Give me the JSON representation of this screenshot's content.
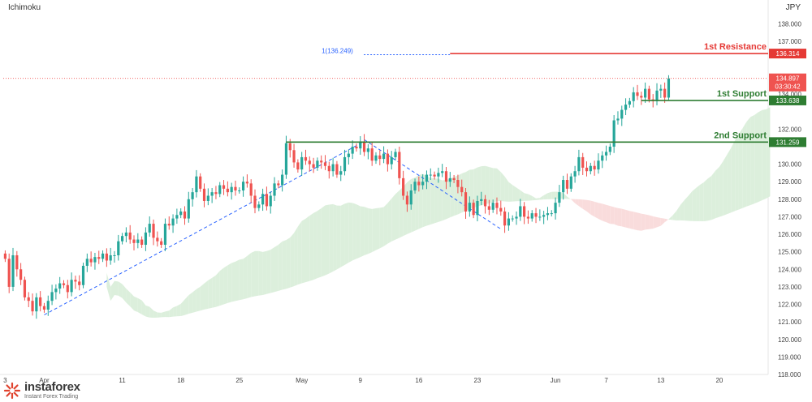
{
  "indicator": "Ichimoku",
  "currency": "JPY",
  "logo": {
    "name": "instaforex",
    "tagline": "Instant Forex Trading"
  },
  "colors": {
    "up": "#26a69a",
    "down": "#ef5350",
    "resistance": "#e53935",
    "support": "#2e7d32",
    "cloud_bull": "#dcefdc",
    "cloud_bear": "#f9dcdc",
    "trendline": "#2962ff",
    "price_tag": "#ef5350",
    "grid": "#ffffff"
  },
  "chart_data": {
    "type": "candlestick",
    "title": "",
    "ylim": [
      118,
      139
    ],
    "y_ticks": [
      118,
      119,
      120,
      121,
      122,
      123,
      124,
      125,
      126,
      127,
      128,
      129,
      130,
      131,
      132,
      133,
      134,
      135,
      136,
      137,
      138
    ],
    "y_tick_labels": [
      "118.000",
      "119.000",
      "120.000",
      "121.000",
      "122.000",
      "123.000",
      "124.000",
      "125.000",
      "126.000",
      "127.000",
      "128.000",
      "129.000",
      "130.000",
      "131.000",
      "132.000",
      "133.000",
      "134.000",
      "135.000",
      "136.000",
      "137.000",
      "138.000"
    ],
    "x_ticks": [
      {
        "label": "3",
        "bar": 0
      },
      {
        "label": "Apr",
        "bar": 10
      },
      {
        "label": "11",
        "bar": 30
      },
      {
        "label": "18",
        "bar": 45
      },
      {
        "label": "25",
        "bar": 60
      },
      {
        "label": "May",
        "bar": 76
      },
      {
        "label": "9",
        "bar": 91
      },
      {
        "label": "16",
        "bar": 106
      },
      {
        "label": "23",
        "bar": 121
      },
      {
        "label": "Jun",
        "bar": 141
      },
      {
        "label": "7",
        "bar": 154
      },
      {
        "label": "13",
        "bar": 168
      },
      {
        "label": "20",
        "bar": 183
      }
    ],
    "x_total_bars": 196,
    "levels": [
      {
        "name": "1st Resistance",
        "value": 136.314,
        "label": "136.314",
        "type": "resistance",
        "start_bar": 114
      },
      {
        "name": "1st Support",
        "value": 133.638,
        "label": "133.638",
        "type": "support",
        "start_bar": 163
      },
      {
        "name": "2nd Support",
        "value": 131.259,
        "label": "131.259",
        "type": "support",
        "start_bar": 72
      }
    ],
    "fib_label": "1(136.249)",
    "fib_value": 136.249,
    "fib_start_bar": 84,
    "current_price": {
      "value": 134.897,
      "label": "134.897",
      "countdown": "03:30:42"
    },
    "trendlines": [
      {
        "x1": 10,
        "y1": 121.4,
        "x2": 92,
        "y2": 131.3
      },
      {
        "x1": 92,
        "y1": 131.4,
        "x2": 127,
        "y2": 126.3
      }
    ],
    "closes": [
      124.6,
      123.0,
      124.8,
      124.0,
      123.4,
      122.4,
      122.2,
      121.6,
      122.4,
      121.9,
      121.7,
      122.2,
      122.7,
      122.9,
      123.2,
      123.1,
      122.7,
      123.4,
      123.3,
      123.1,
      124.2,
      124.6,
      124.4,
      124.7,
      124.6,
      124.9,
      124.5,
      124.8,
      124.8,
      125.6,
      125.9,
      126.1,
      125.7,
      125.5,
      125.7,
      125.4,
      126.1,
      126.6,
      125.8,
      125.6,
      125.4,
      126.6,
      126.5,
      126.9,
      127.1,
      127.3,
      126.9,
      128.0,
      128.4,
      129.3,
      128.6,
      127.9,
      128.2,
      128.4,
      128.3,
      128.8,
      128.6,
      128.4,
      128.7,
      128.5,
      128.5,
      129.0,
      128.9,
      128.2,
      127.5,
      127.7,
      128.3,
      127.6,
      128.2,
      128.9,
      128.8,
      129.4,
      131.2,
      130.8,
      130.1,
      129.7,
      130.4,
      130.2,
      130.0,
      129.8,
      130.2,
      130.1,
      129.9,
      129.6,
      130.0,
      129.4,
      129.6,
      130.4,
      130.6,
      131.0,
      130.9,
      131.3,
      130.7,
      130.9,
      130.2,
      130.5,
      130.3,
      130.6,
      130.0,
      130.4,
      130.7,
      129.2,
      128.2,
      127.7,
      128.5,
      129.0,
      128.8,
      129.0,
      129.4,
      129.4,
      129.3,
      129.5,
      129.6,
      129.0,
      129.2,
      129.1,
      128.7,
      128.4,
      127.3,
      127.8,
      127.1,
      127.9,
      128.0,
      127.6,
      127.4,
      127.8,
      127.5,
      127.3,
      126.5,
      126.9,
      126.9,
      127.0,
      127.6,
      127.0,
      126.9,
      127.2,
      127.0,
      127.0,
      127.1,
      127.2,
      127.2,
      127.8,
      128.4,
      129.1,
      128.6,
      129.3,
      129.6,
      130.4,
      129.8,
      129.6,
      129.9,
      129.7,
      130.2,
      130.5,
      130.7,
      131.0,
      132.5,
      132.6,
      133.1,
      133.4,
      133.6,
      134.1,
      133.9,
      133.8,
      134.3,
      133.7,
      133.6,
      134.2,
      134.3,
      133.8,
      134.897
    ]
  }
}
